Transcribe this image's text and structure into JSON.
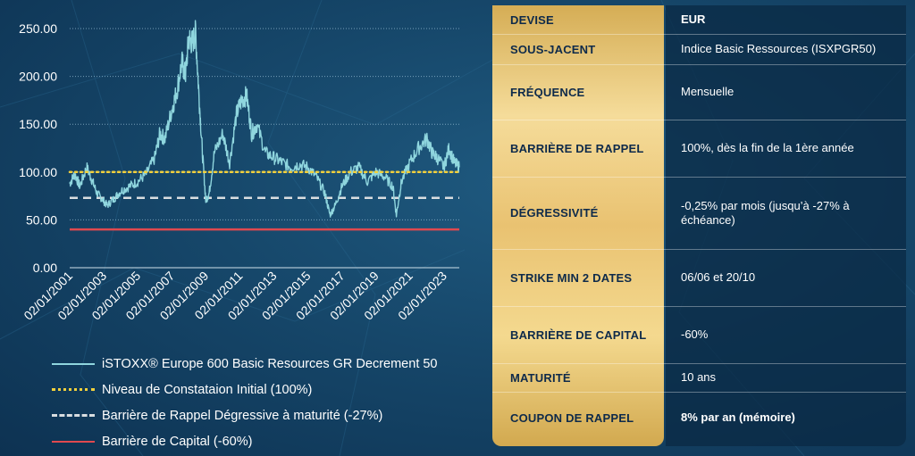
{
  "chart_data": {
    "type": "line",
    "yticks": [
      "250.00",
      "200.00",
      "150.00",
      "100.00",
      "50.00",
      "0.00"
    ],
    "ylim": [
      0,
      250
    ],
    "xticks": [
      "02/01/2001",
      "02/01/2003",
      "02/01/2005",
      "02/01/2007",
      "02/01/2009",
      "02/01/2011",
      "02/01/2013",
      "02/01/2015",
      "02/01/2017",
      "02/01/2019",
      "02/01/2021",
      "02/01/2023"
    ],
    "xlim": [
      2001,
      2023.9
    ],
    "series": [
      {
        "name": "iSTOXX® Europe 600 Basic Resources GR Decrement 50",
        "color": "#8fd6de",
        "x": [
          2001.0,
          2001.3,
          2001.6,
          2002.0,
          2002.3,
          2002.6,
          2002.9,
          2003.2,
          2003.6,
          2004.0,
          2004.5,
          2005.0,
          2005.5,
          2006.0,
          2006.3,
          2006.6,
          2007.0,
          2007.3,
          2007.6,
          2007.8,
          2008.0,
          2008.2,
          2008.4,
          2008.6,
          2008.8,
          2009.0,
          2009.2,
          2009.5,
          2010.0,
          2010.4,
          2010.8,
          2011.1,
          2011.4,
          2011.7,
          2012.0,
          2012.5,
          2013.0,
          2013.5,
          2014.0,
          2014.5,
          2015.0,
          2015.5,
          2016.0,
          2016.3,
          2016.6,
          2017.0,
          2017.5,
          2018.0,
          2018.5,
          2019.0,
          2019.5,
          2020.0,
          2020.2,
          2020.5,
          2021.0,
          2021.5,
          2022.0,
          2022.3,
          2022.6,
          2023.0,
          2023.3,
          2023.6,
          2023.9
        ],
        "values": [
          88,
          98,
          85,
          105,
          92,
          78,
          72,
          65,
          72,
          80,
          85,
          90,
          98,
          115,
          140,
          135,
          165,
          185,
          215,
          200,
          240,
          235,
          245,
          180,
          120,
          70,
          78,
          120,
          140,
          110,
          160,
          175,
          180,
          140,
          150,
          120,
          115,
          110,
          105,
          108,
          105,
          95,
          78,
          55,
          65,
          85,
          100,
          105,
          90,
          100,
          95,
          85,
          55,
          90,
          110,
          125,
          135,
          120,
          115,
          105,
          125,
          110,
          105
        ]
      },
      {
        "name": "Niveau de Constataion Initial (100%)",
        "color": "#f2d03c",
        "value": 100
      },
      {
        "name": "Barrière de Rappel Dégressive à maturité (-27%)",
        "color": "#d9dde0",
        "value": 73
      },
      {
        "name": "Barrière de Capital (-60%)",
        "color": "#e0494f",
        "value": 40
      }
    ]
  },
  "legend": [
    {
      "label": "iSTOXX® Europe 600 Basic Resources GR Decrement 50"
    },
    {
      "label": "Niveau de Constataion Initial (100%)"
    },
    {
      "label": "Barrière de Rappel Dégressive à maturité (-27%)"
    },
    {
      "label": "Barrière de Capital (-60%)"
    }
  ],
  "table": {
    "rows": [
      {
        "key": "DEVISE",
        "value": "EUR"
      },
      {
        "key": "SOUS-JACENT",
        "value": "Indice Basic Ressources (ISXPGR50)"
      },
      {
        "key": "FRÉQUENCE",
        "value": "Mensuelle"
      },
      {
        "key": "BARRIÈRE DE RAPPEL",
        "value": "100%, dès la fin de la 1ère année"
      },
      {
        "key": "DÉGRESSIVITÉ",
        "value": "-0,25% par mois (jusqu’à -27% à échéance)"
      },
      {
        "key": "STRIKE MIN 2 DATES",
        "value": "06/06 et 20/10"
      },
      {
        "key": "BARRIÈRE DE CAPITAL",
        "value": "-60%"
      },
      {
        "key": "MATURITÉ",
        "value": "10 ans"
      },
      {
        "key": "COUPON DE RAPPEL",
        "value": "8% par an (mémoire)"
      }
    ]
  }
}
